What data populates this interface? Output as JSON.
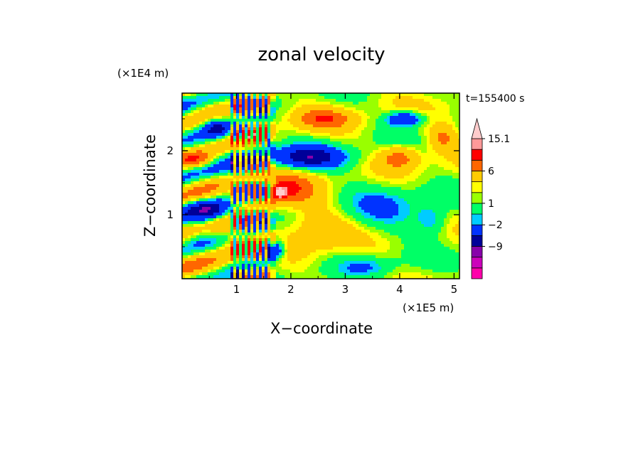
{
  "chart_data": {
    "type": "heatmap",
    "title": "zonal velocity",
    "xlabel": "X−coordinate",
    "ylabel": "Z−coordinate",
    "x_unit": "(×1E5 m)",
    "y_unit": "(×1E4 m)",
    "time_label": "t=155400 s",
    "xlim": [
      0.0,
      5.1
    ],
    "ylim": [
      0.0,
      2.9
    ],
    "x_ticks": [
      1,
      2,
      3,
      4,
      5
    ],
    "x_tick_labels": [
      "1",
      "2",
      "3",
      "4",
      "5"
    ],
    "y_ticks": [
      1,
      2
    ],
    "y_tick_labels": [
      "1",
      "2"
    ],
    "colorbar": {
      "levels": [
        -15,
        -12,
        -9,
        -6,
        -2,
        -1,
        1,
        2,
        3,
        6,
        9,
        12,
        15.1
      ],
      "colors": [
        "#ff00aa",
        "#cc00bb",
        "#8800aa",
        "#000099",
        "#0033ff",
        "#00ccff",
        "#00ff66",
        "#99ff00",
        "#ffff00",
        "#ffcc00",
        "#ff6600",
        "#ff0000",
        "#ff9999",
        "#ffcccc"
      ],
      "labels": [
        "15.1",
        "6",
        "1",
        "−2",
        "−9"
      ],
      "label_values": [
        15.1,
        6,
        1,
        -2,
        -9
      ],
      "extend": "max"
    },
    "features": [
      {
        "x": 0.65,
        "z": 2.35,
        "value": -8,
        "rx": 0.25,
        "rz": 0.15
      },
      {
        "x": 0.55,
        "z": 1.05,
        "value": -10,
        "rx": 0.45,
        "rz": 0.18
      },
      {
        "x": 2.3,
        "z": 1.9,
        "value": -9,
        "rx": 0.7,
        "rz": 0.18
      },
      {
        "x": 4.1,
        "z": 2.5,
        "value": -8,
        "rx": 0.35,
        "rz": 0.12
      },
      {
        "x": 3.7,
        "z": 1.1,
        "value": -3,
        "rx": 0.9,
        "rz": 0.45
      },
      {
        "x": 3.4,
        "z": 0.2,
        "value": -3,
        "rx": 0.5,
        "rz": 0.15
      },
      {
        "x": 1.9,
        "z": 1.4,
        "value": 7,
        "rx": 0.5,
        "rz": 0.25
      },
      {
        "x": 2.6,
        "z": 2.5,
        "value": 6,
        "rx": 0.5,
        "rz": 0.15
      },
      {
        "x": 4.0,
        "z": 1.9,
        "value": 6,
        "rx": 0.35,
        "rz": 0.18
      },
      {
        "x": 2.5,
        "z": 0.8,
        "value": 4,
        "rx": 0.6,
        "rz": 0.35
      },
      {
        "x": 0.8,
        "z": 0.8,
        "value": 5,
        "rx": 0.35,
        "rz": 0.25
      },
      {
        "x": 1.8,
        "z": 1.35,
        "value": 12,
        "rx": 0.1,
        "rz": 0.08
      },
      {
        "x": 1.7,
        "z": 0.45,
        "value": -9,
        "rx": 0.18,
        "rz": 0.15
      },
      {
        "x": 4.6,
        "z": 0.9,
        "value": -4,
        "rx": 0.3,
        "rz": 0.25
      },
      {
        "x": 0.3,
        "z": 1.85,
        "value": 5,
        "rx": 0.3,
        "rz": 0.12
      },
      {
        "x": 4.8,
        "z": 2.2,
        "value": 5,
        "rx": 0.25,
        "rz": 0.2
      }
    ]
  }
}
